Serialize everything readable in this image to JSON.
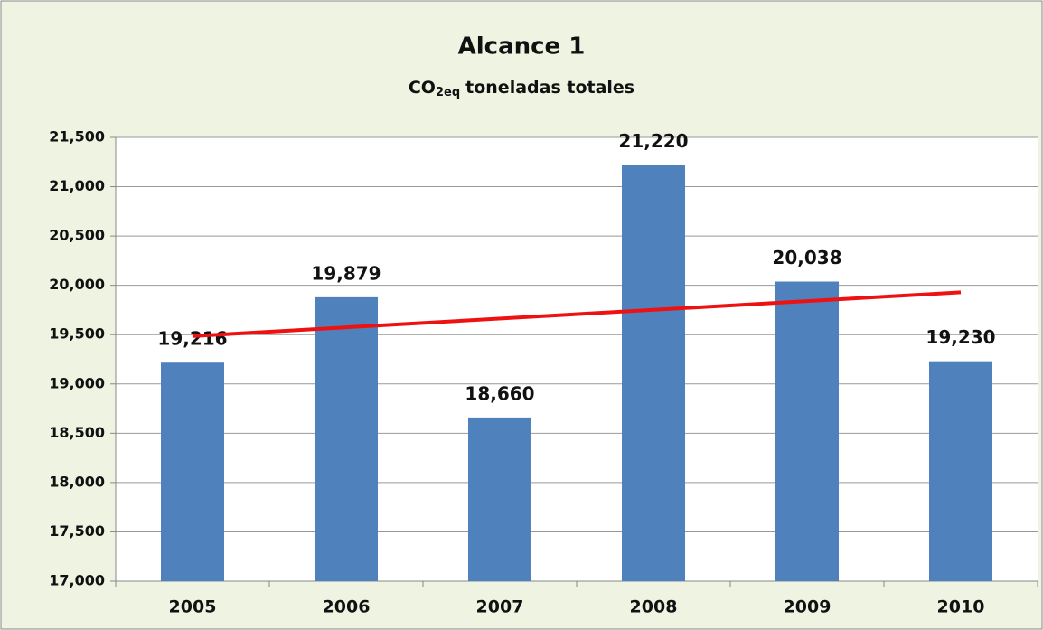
{
  "chart_data": {
    "type": "bar",
    "title": "Alcance 1",
    "subtitle": {
      "base": "CO",
      "sub": "2eq",
      "rest": "toneladas totales"
    },
    "categories": [
      "2005",
      "2006",
      "2007",
      "2008",
      "2009",
      "2010"
    ],
    "values": [
      19216,
      19879,
      18660,
      21220,
      20038,
      19230
    ],
    "value_labels": [
      "19,216",
      "19,879",
      "18,660",
      "21,220",
      "20,038",
      "19,230"
    ],
    "color": "#4f81bd",
    "trendline": {
      "values": [
        19485,
        19929
      ],
      "color": "#ee1111"
    },
    "ylim": [
      17000,
      21500
    ],
    "yticks": [
      {
        "value": 17000,
        "label": "17,000"
      },
      {
        "value": 17500,
        "label": "17,500"
      },
      {
        "value": 18000,
        "label": "18,000"
      },
      {
        "value": 18500,
        "label": "18,500"
      },
      {
        "value": 19000,
        "label": "19,000"
      },
      {
        "value": 19500,
        "label": "19,500"
      },
      {
        "value": 20000,
        "label": "20,000"
      },
      {
        "value": 20500,
        "label": "20,500"
      },
      {
        "value": 21000,
        "label": "21,000"
      },
      {
        "value": 21500,
        "label": "21,500"
      }
    ],
    "grid": true
  }
}
